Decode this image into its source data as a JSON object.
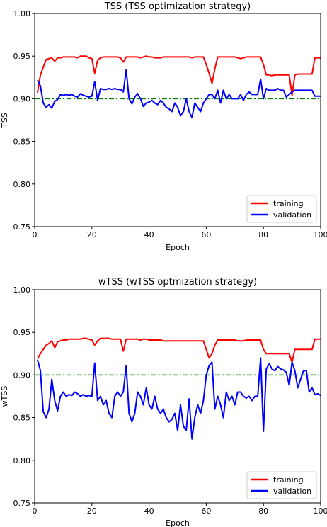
{
  "chart_data": [
    {
      "type": "line",
      "title": "TSS (TSS optimization strategy)",
      "xlabel": "Epoch",
      "ylabel": "TSS",
      "xlim": [
        0,
        100
      ],
      "ylim": [
        0.75,
        1.0
      ],
      "xticks": [
        0,
        20,
        40,
        60,
        80,
        100
      ],
      "yticks": [
        0.75,
        0.8,
        0.85,
        0.9,
        0.95,
        1.0
      ],
      "ytick_labels": [
        "0.75",
        "0.80",
        "0.85",
        "0.90",
        "0.95",
        "1.00"
      ],
      "grid": false,
      "legend_position": "lower-right",
      "reference_line": {
        "y": 0.9,
        "color": "#008000",
        "style": "dash-dot"
      },
      "series": [
        {
          "name": "training",
          "color": "#ff0000",
          "x": [
            1,
            2,
            3,
            4,
            5,
            6,
            7,
            8,
            9,
            10,
            11,
            12,
            13,
            14,
            15,
            16,
            17,
            18,
            19,
            20,
            21,
            22,
            23,
            24,
            25,
            26,
            27,
            28,
            29,
            30,
            31,
            32,
            33,
            34,
            35,
            36,
            37,
            38,
            39,
            40,
            41,
            42,
            43,
            44,
            45,
            46,
            47,
            48,
            49,
            50,
            51,
            52,
            53,
            54,
            55,
            56,
            57,
            58,
            59,
            60,
            61,
            62,
            63,
            64,
            65,
            66,
            67,
            68,
            69,
            70,
            71,
            72,
            73,
            74,
            75,
            76,
            77,
            78,
            79,
            80,
            81,
            82,
            83,
            84,
            85,
            86,
            87,
            88,
            89,
            90,
            91,
            92,
            93,
            94,
            95,
            96,
            97,
            98,
            99,
            100
          ],
          "y": [
            0.907,
            0.928,
            0.937,
            0.946,
            0.947,
            0.948,
            0.944,
            0.948,
            0.948,
            0.949,
            0.949,
            0.949,
            0.949,
            0.949,
            0.948,
            0.95,
            0.95,
            0.95,
            0.948,
            0.947,
            0.93,
            0.945,
            0.948,
            0.949,
            0.949,
            0.949,
            0.949,
            0.949,
            0.949,
            0.948,
            0.943,
            0.949,
            0.949,
            0.949,
            0.949,
            0.949,
            0.948,
            0.949,
            0.95,
            0.949,
            0.949,
            0.948,
            0.948,
            0.948,
            0.949,
            0.949,
            0.949,
            0.949,
            0.949,
            0.949,
            0.949,
            0.949,
            0.949,
            0.949,
            0.948,
            0.949,
            0.949,
            0.949,
            0.949,
            0.94,
            0.93,
            0.918,
            0.935,
            0.949,
            0.949,
            0.949,
            0.949,
            0.949,
            0.949,
            0.949,
            0.948,
            0.947,
            0.948,
            0.949,
            0.949,
            0.949,
            0.949,
            0.949,
            0.949,
            0.94,
            0.928,
            0.928,
            0.927,
            0.928,
            0.928,
            0.928,
            0.928,
            0.928,
            0.928,
            0.904,
            0.928,
            0.929,
            0.929,
            0.929,
            0.929,
            0.929,
            0.929,
            0.948,
            0.948,
            0.948
          ]
        },
        {
          "name": "validation",
          "color": "#0000ff",
          "x": [
            1,
            2,
            3,
            4,
            5,
            6,
            7,
            8,
            9,
            10,
            11,
            12,
            13,
            14,
            15,
            16,
            17,
            18,
            19,
            20,
            21,
            22,
            23,
            24,
            25,
            26,
            27,
            28,
            29,
            30,
            31,
            32,
            33,
            34,
            35,
            36,
            37,
            38,
            39,
            40,
            41,
            42,
            43,
            44,
            45,
            46,
            47,
            48,
            49,
            50,
            51,
            52,
            53,
            54,
            55,
            56,
            57,
            58,
            59,
            60,
            61,
            62,
            63,
            64,
            65,
            66,
            67,
            68,
            69,
            70,
            71,
            72,
            73,
            74,
            75,
            76,
            77,
            78,
            79,
            80,
            81,
            82,
            83,
            84,
            85,
            86,
            87,
            88,
            89,
            90,
            91,
            92,
            93,
            94,
            95,
            96,
            97,
            98,
            99,
            100
          ],
          "y": [
            0.922,
            0.915,
            0.895,
            0.89,
            0.893,
            0.889,
            0.897,
            0.899,
            0.905,
            0.904,
            0.905,
            0.904,
            0.905,
            0.903,
            0.902,
            0.906,
            0.904,
            0.903,
            0.902,
            0.903,
            0.92,
            0.898,
            0.912,
            0.911,
            0.911,
            0.912,
            0.911,
            0.912,
            0.911,
            0.911,
            0.908,
            0.934,
            0.9,
            0.894,
            0.902,
            0.906,
            0.9,
            0.891,
            0.895,
            0.896,
            0.898,
            0.895,
            0.893,
            0.898,
            0.895,
            0.89,
            0.888,
            0.885,
            0.895,
            0.89,
            0.88,
            0.885,
            0.9,
            0.885,
            0.878,
            0.895,
            0.89,
            0.885,
            0.895,
            0.9,
            0.905,
            0.905,
            0.9,
            0.91,
            0.895,
            0.91,
            0.9,
            0.905,
            0.9,
            0.9,
            0.9,
            0.905,
            0.898,
            0.905,
            0.908,
            0.905,
            0.905,
            0.905,
            0.923,
            0.9,
            0.912,
            0.91,
            0.91,
            0.91,
            0.912,
            0.91,
            0.91,
            0.902,
            0.905,
            0.908,
            0.91,
            0.91,
            0.91,
            0.91,
            0.91,
            0.91,
            0.91,
            0.903,
            0.903,
            0.903
          ]
        }
      ]
    },
    {
      "type": "line",
      "title": "wTSS (wTSS optmization strategy)",
      "xlabel": "Epoch",
      "ylabel": "wTSS",
      "xlim": [
        0,
        100
      ],
      "ylim": [
        0.75,
        1.0
      ],
      "xticks": [
        0,
        20,
        40,
        60,
        80,
        100
      ],
      "yticks": [
        0.75,
        0.8,
        0.85,
        0.9,
        0.95,
        1.0
      ],
      "ytick_labels": [
        "0.75",
        "0.80",
        "0.85",
        "0.90",
        "0.95",
        "1.00"
      ],
      "grid": false,
      "legend_position": "lower-right",
      "reference_line": {
        "y": 0.9,
        "color": "#008000",
        "style": "dash-dot"
      },
      "series": [
        {
          "name": "training",
          "color": "#ff0000",
          "x": [
            1,
            2,
            3,
            4,
            5,
            6,
            7,
            8,
            9,
            10,
            11,
            12,
            13,
            14,
            15,
            16,
            17,
            18,
            19,
            20,
            21,
            22,
            23,
            24,
            25,
            26,
            27,
            28,
            29,
            30,
            31,
            32,
            33,
            34,
            35,
            36,
            37,
            38,
            39,
            40,
            41,
            42,
            43,
            44,
            45,
            46,
            47,
            48,
            49,
            50,
            51,
            52,
            53,
            54,
            55,
            56,
            57,
            58,
            59,
            60,
            61,
            62,
            63,
            64,
            65,
            66,
            67,
            68,
            69,
            70,
            71,
            72,
            73,
            74,
            75,
            76,
            77,
            78,
            79,
            80,
            81,
            82,
            83,
            84,
            85,
            86,
            87,
            88,
            89,
            90,
            91,
            92,
            93,
            94,
            95,
            96,
            97,
            98,
            99,
            100
          ],
          "y": [
            0.919,
            0.925,
            0.93,
            0.935,
            0.937,
            0.94,
            0.932,
            0.939,
            0.94,
            0.941,
            0.941,
            0.942,
            0.942,
            0.942,
            0.942,
            0.942,
            0.943,
            0.943,
            0.942,
            0.941,
            0.935,
            0.94,
            0.943,
            0.943,
            0.943,
            0.943,
            0.942,
            0.942,
            0.942,
            0.942,
            0.928,
            0.942,
            0.942,
            0.942,
            0.942,
            0.942,
            0.941,
            0.942,
            0.942,
            0.941,
            0.941,
            0.941,
            0.941,
            0.941,
            0.94,
            0.94,
            0.94,
            0.94,
            0.94,
            0.94,
            0.94,
            0.94,
            0.94,
            0.94,
            0.94,
            0.94,
            0.94,
            0.94,
            0.94,
            0.93,
            0.92,
            0.925,
            0.935,
            0.941,
            0.941,
            0.941,
            0.941,
            0.941,
            0.941,
            0.941,
            0.94,
            0.94,
            0.94,
            0.941,
            0.941,
            0.941,
            0.941,
            0.941,
            0.941,
            0.93,
            0.925,
            0.925,
            0.925,
            0.925,
            0.925,
            0.925,
            0.925,
            0.925,
            0.925,
            0.915,
            0.93,
            0.93,
            0.93,
            0.93,
            0.93,
            0.93,
            0.93,
            0.942,
            0.942,
            0.942
          ]
        },
        {
          "name": "validation",
          "color": "#0000ff",
          "x": [
            1,
            2,
            3,
            4,
            5,
            6,
            7,
            8,
            9,
            10,
            11,
            12,
            13,
            14,
            15,
            16,
            17,
            18,
            19,
            20,
            21,
            22,
            23,
            24,
            25,
            26,
            27,
            28,
            29,
            30,
            31,
            32,
            33,
            34,
            35,
            36,
            37,
            38,
            39,
            40,
            41,
            42,
            43,
            44,
            45,
            46,
            47,
            48,
            49,
            50,
            51,
            52,
            53,
            54,
            55,
            56,
            57,
            58,
            59,
            60,
            61,
            62,
            63,
            64,
            65,
            66,
            67,
            68,
            69,
            70,
            71,
            72,
            73,
            74,
            75,
            76,
            77,
            78,
            79,
            80,
            81,
            82,
            83,
            84,
            85,
            86,
            87,
            88,
            89,
            90,
            91,
            92,
            93,
            94,
            95,
            96,
            97,
            98,
            99,
            100
          ],
          "y": [
            0.918,
            0.905,
            0.857,
            0.85,
            0.86,
            0.895,
            0.87,
            0.858,
            0.875,
            0.88,
            0.875,
            0.877,
            0.876,
            0.88,
            0.878,
            0.875,
            0.877,
            0.875,
            0.876,
            0.875,
            0.914,
            0.87,
            0.875,
            0.865,
            0.87,
            0.855,
            0.85,
            0.875,
            0.88,
            0.875,
            0.88,
            0.911,
            0.855,
            0.845,
            0.855,
            0.88,
            0.875,
            0.865,
            0.885,
            0.865,
            0.86,
            0.875,
            0.86,
            0.855,
            0.86,
            0.85,
            0.845,
            0.848,
            0.855,
            0.835,
            0.865,
            0.84,
            0.835,
            0.872,
            0.825,
            0.85,
            0.865,
            0.855,
            0.87,
            0.9,
            0.911,
            0.915,
            0.86,
            0.875,
            0.865,
            0.85,
            0.88,
            0.87,
            0.875,
            0.865,
            0.88,
            0.88,
            0.875,
            0.873,
            0.875,
            0.87,
            0.875,
            0.875,
            0.92,
            0.834,
            0.907,
            0.913,
            0.907,
            0.905,
            0.91,
            0.907,
            0.906,
            0.903,
            0.888,
            0.915,
            0.905,
            0.885,
            0.895,
            0.905,
            0.905,
            0.88,
            0.885,
            0.877,
            0.878,
            0.876
          ]
        }
      ]
    }
  ]
}
